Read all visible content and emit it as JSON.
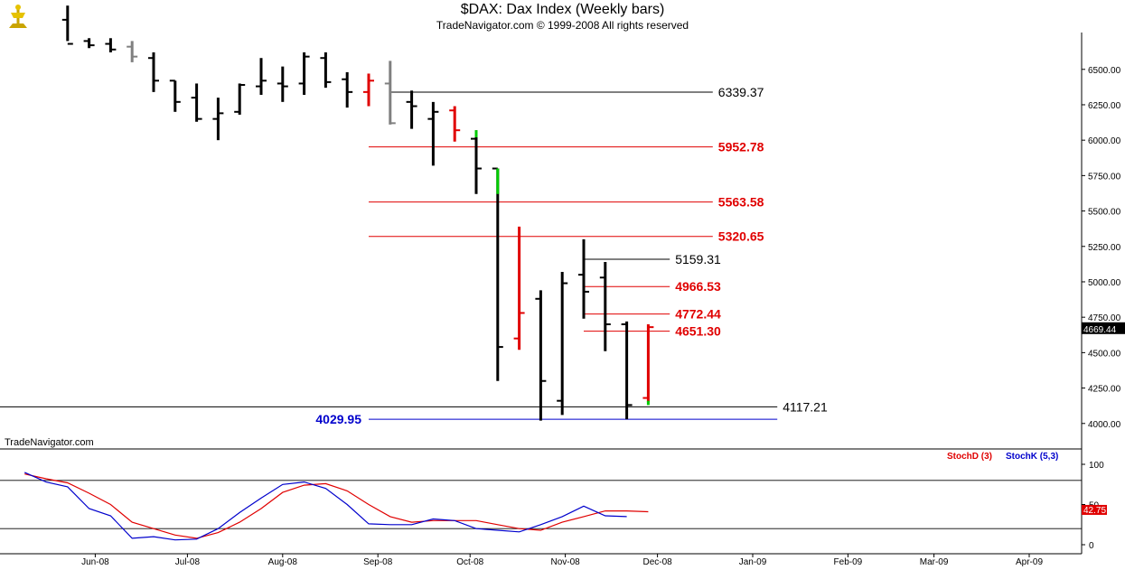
{
  "header": {
    "title": "$DAX:  Dax Index  (Weekly bars)",
    "copyright": "TradeNavigator.com © 1999-2008 All rights reserved"
  },
  "watermark": "TradeNavigator.com",
  "colors": {
    "black": "#000000",
    "red": "#e00000",
    "blue": "#0000cc",
    "green": "#00cc00",
    "gray": "#808080"
  },
  "chart_data": {
    "type": "ohlc",
    "x_axis": {
      "labels": [
        "Jun-08",
        "Jul-08",
        "Aug-08",
        "Sep-08",
        "Oct-08",
        "Nov-08",
        "Dec-08",
        "Jan-09",
        "Feb-09",
        "Mar-09",
        "Apr-09"
      ]
    },
    "y_axis": {
      "ticks": [
        4000,
        4250,
        4500,
        4750,
        5000,
        5250,
        5500,
        5750,
        6000,
        6250,
        6500
      ],
      "ylim": [
        3820,
        6760
      ]
    },
    "last_price": "4669.44",
    "bars": [
      {
        "week": "2008-05-23",
        "o": 6850,
        "h": 6950,
        "l": 6700,
        "c": 6680,
        "color": "black"
      },
      {
        "week": "2008-05-30",
        "o": 6700,
        "h": 6720,
        "l": 6650,
        "c": 6670,
        "color": "black"
      },
      {
        "week": "2008-06-06",
        "o": 6680,
        "h": 6720,
        "l": 6620,
        "c": 6640,
        "color": "black"
      },
      {
        "week": "2008-06-13",
        "o": 6660,
        "h": 6700,
        "l": 6550,
        "c": 6590,
        "color": "gray"
      },
      {
        "week": "2008-06-20",
        "o": 6580,
        "h": 6620,
        "l": 6340,
        "c": 6420,
        "color": "black"
      },
      {
        "week": "2008-06-27",
        "o": 6420,
        "h": 6420,
        "l": 6200,
        "c": 6270,
        "color": "black"
      },
      {
        "week": "2008-07-04",
        "o": 6300,
        "h": 6400,
        "l": 6130,
        "c": 6150,
        "color": "black"
      },
      {
        "week": "2008-07-11",
        "o": 6150,
        "h": 6300,
        "l": 6000,
        "c": 6190,
        "color": "black"
      },
      {
        "week": "2008-07-18",
        "o": 6200,
        "h": 6400,
        "l": 6180,
        "c": 6390,
        "color": "black"
      },
      {
        "week": "2008-07-25",
        "o": 6380,
        "h": 6580,
        "l": 6320,
        "c": 6420,
        "color": "black"
      },
      {
        "week": "2008-08-01",
        "o": 6400,
        "h": 6520,
        "l": 6270,
        "c": 6380,
        "color": "black"
      },
      {
        "week": "2008-08-08",
        "o": 6400,
        "h": 6620,
        "l": 6320,
        "c": 6590,
        "color": "black"
      },
      {
        "week": "2008-08-15",
        "o": 6580,
        "h": 6620,
        "l": 6370,
        "c": 6410,
        "color": "black"
      },
      {
        "week": "2008-08-22",
        "o": 6430,
        "h": 6480,
        "l": 6230,
        "c": 6340,
        "color": "black"
      },
      {
        "week": "2008-08-29",
        "o": 6340,
        "h": 6470,
        "l": 6240,
        "c": 6420,
        "color": "red"
      },
      {
        "week": "2008-09-05",
        "o": 6400,
        "h": 6560,
        "l": 6110,
        "c": 6120,
        "color": "gray"
      },
      {
        "week": "2008-09-12",
        "o": 6270,
        "h": 6350,
        "l": 6080,
        "c": 6240,
        "color": "black"
      },
      {
        "week": "2008-09-19",
        "o": 6150,
        "h": 6270,
        "l": 5820,
        "c": 6200,
        "color": "black"
      },
      {
        "week": "2008-09-26",
        "o": 6210,
        "h": 6240,
        "l": 5990,
        "c": 6070,
        "color": "red"
      },
      {
        "week": "2008-10-03",
        "o": 6010,
        "h": 6070,
        "l": 5620,
        "c": 5800,
        "color": "black"
      },
      {
        "week": "2008-10-10",
        "o": 5800,
        "h": 5800,
        "l": 4300,
        "c": 4540,
        "color": "black"
      },
      {
        "week": "2008-10-17",
        "o": 4600,
        "h": 5390,
        "l": 4520,
        "c": 4780,
        "color": "red"
      },
      {
        "week": "2008-10-24",
        "o": 4880,
        "h": 4940,
        "l": 4020,
        "c": 4300,
        "color": "black"
      },
      {
        "week": "2008-10-31",
        "o": 4160,
        "h": 5070,
        "l": 4060,
        "c": 4990,
        "color": "black"
      },
      {
        "week": "2008-11-07",
        "o": 5050,
        "h": 5300,
        "l": 4740,
        "c": 4930,
        "color": "black"
      },
      {
        "week": "2008-11-14",
        "o": 5030,
        "h": 5140,
        "l": 4510,
        "c": 4700,
        "color": "black"
      },
      {
        "week": "2008-11-21",
        "o": 4700,
        "h": 4720,
        "l": 4030,
        "c": 4130,
        "color": "black"
      },
      {
        "week": "2008-11-28",
        "o": 4180,
        "h": 4700,
        "l": 4150,
        "c": 4680,
        "color": "red"
      }
    ],
    "green_marks": [
      {
        "week": "2008-10-03",
        "h": 6070,
        "l": 6020
      },
      {
        "week": "2008-10-10",
        "h": 5800,
        "l": 5620
      },
      {
        "week": "2008-11-28",
        "h": 4160,
        "l": 4130
      }
    ],
    "hlines": [
      {
        "value": 6339.37,
        "label": "6339.37",
        "color": "black",
        "from": "2008-09-05",
        "to": "2008-12-19"
      },
      {
        "value": 5952.78,
        "label": "5952.78",
        "color": "red",
        "from": "2008-08-29",
        "to": "2008-12-19"
      },
      {
        "value": 5563.58,
        "label": "5563.58",
        "color": "red",
        "from": "2008-08-29",
        "to": "2008-12-19"
      },
      {
        "value": 5320.65,
        "label": "5320.65",
        "color": "red",
        "from": "2008-08-29",
        "to": "2008-12-19"
      },
      {
        "value": 5159.31,
        "label": "5159.31",
        "color": "black",
        "from": "2008-11-07",
        "to": "2008-12-05"
      },
      {
        "value": 4966.53,
        "label": "4966.53",
        "color": "red",
        "from": "2008-11-07",
        "to": "2008-12-05"
      },
      {
        "value": 4772.44,
        "label": "4772.44",
        "color": "red",
        "from": "2008-11-07",
        "to": "2008-12-05"
      },
      {
        "value": 4651.3,
        "label": "4651.30",
        "color": "red",
        "from": "2008-11-07",
        "to": "2008-12-05"
      },
      {
        "value": 4117.21,
        "label": "4117.21",
        "color": "black",
        "from": "2008-05-01",
        "to": "2009-01-09"
      },
      {
        "value": 4029.95,
        "label": "4029.95",
        "color": "blue",
        "from": "2008-08-29",
        "to": "2009-01-09",
        "label_left": true
      }
    ],
    "stochastic": {
      "legend": [
        {
          "name": "StochD (3)",
          "color": "red"
        },
        {
          "name": "StochK (5,3)",
          "color": "blue"
        }
      ],
      "y_ticks": [
        0,
        50,
        100
      ],
      "ref_levels": [
        20,
        80
      ],
      "readout": "42.75",
      "weeks": [
        "2008-05-09",
        "2008-05-16",
        "2008-05-23",
        "2008-05-30",
        "2008-06-06",
        "2008-06-13",
        "2008-06-20",
        "2008-06-27",
        "2008-07-04",
        "2008-07-11",
        "2008-07-18",
        "2008-07-25",
        "2008-08-01",
        "2008-08-08",
        "2008-08-15",
        "2008-08-22",
        "2008-08-29",
        "2008-09-05",
        "2008-09-12",
        "2008-09-19",
        "2008-09-26",
        "2008-10-03",
        "2008-10-10",
        "2008-10-17",
        "2008-10-24",
        "2008-10-31",
        "2008-11-07",
        "2008-11-14",
        "2008-11-21",
        "2008-11-28"
      ],
      "stoch_k": [
        90,
        78,
        72,
        45,
        36,
        8,
        10,
        6,
        7,
        20,
        40,
        58,
        75,
        78,
        70,
        50,
        26,
        25,
        25,
        32,
        30,
        20,
        18,
        16,
        25,
        35,
        48,
        36,
        35,
        null
      ],
      "stoch_d": [
        88,
        82,
        77,
        64,
        50,
        28,
        20,
        12,
        8,
        15,
        28,
        45,
        65,
        74,
        76,
        67,
        50,
        35,
        28,
        30,
        30,
        30,
        25,
        20,
        18,
        28,
        35,
        42,
        42,
        41
      ]
    }
  }
}
